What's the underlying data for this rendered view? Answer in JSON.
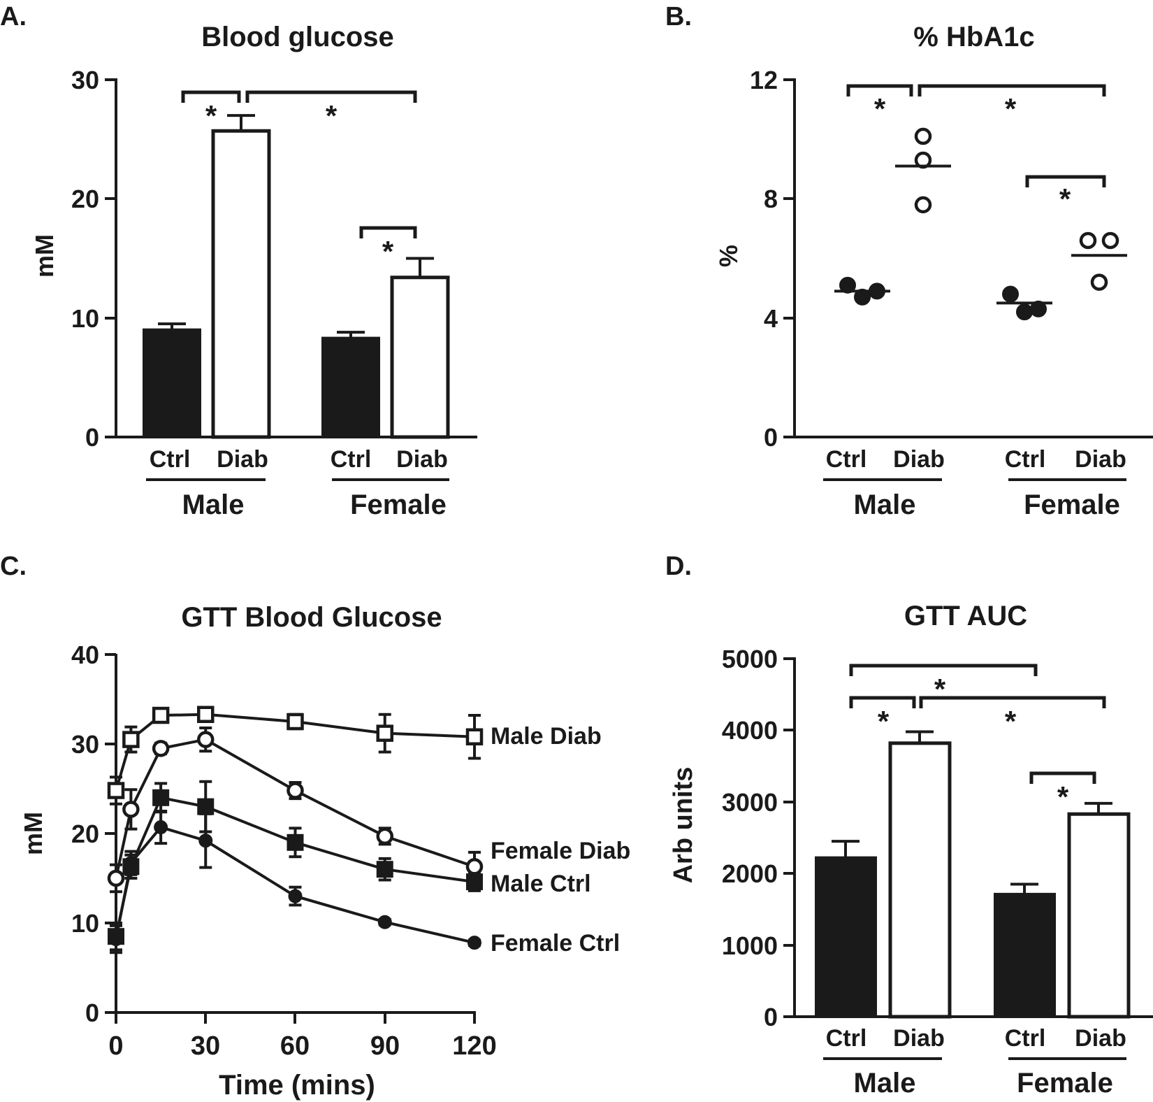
{
  "chart_data": [
    {
      "panel": "A.",
      "type": "bar",
      "title": "Blood glucose",
      "ylabel": "mM",
      "ylim": [
        0,
        30
      ],
      "yticks": [
        "0",
        "10",
        "20",
        "30"
      ],
      "categories": [
        "Ctrl",
        "Diab",
        "Ctrl",
        "Diab"
      ],
      "groups": [
        "Male",
        "Female"
      ],
      "values": [
        9.0,
        25.7,
        8.3,
        13.4
      ],
      "errors": [
        0.5,
        1.3,
        0.5,
        1.6
      ],
      "fills": [
        "filled",
        "open",
        "filled",
        "open"
      ],
      "significance": [
        "*",
        "*",
        "*"
      ]
    },
    {
      "panel": "B.",
      "type": "scatter",
      "title": "% HbA1c",
      "ylabel": "%",
      "ylim": [
        0,
        12
      ],
      "yticks": [
        "0",
        "4",
        "8",
        "12"
      ],
      "categories": [
        "Ctrl",
        "Diab",
        "Ctrl",
        "Diab"
      ],
      "groups": [
        "Male",
        "Female"
      ],
      "points": [
        [
          5.1,
          4.7,
          4.9
        ],
        [
          10.1,
          9.3,
          7.8
        ],
        [
          4.8,
          4.2,
          4.3
        ],
        [
          6.6,
          6.6,
          5.2
        ]
      ],
      "means": [
        4.9,
        9.1,
        4.5,
        6.1
      ],
      "fills": [
        "filled",
        "open",
        "filled",
        "open"
      ],
      "significance": [
        "*",
        "*",
        "*"
      ]
    },
    {
      "panel": "C.",
      "type": "line",
      "title": "GTT Blood Glucose",
      "xlabel": "Time (mins)",
      "ylabel": "mM",
      "xlim": [
        0,
        120
      ],
      "ylim": [
        0,
        40
      ],
      "xticks": [
        "0",
        "30",
        "60",
        "90",
        "120"
      ],
      "yticks": [
        "0",
        "10",
        "20",
        "30",
        "40"
      ],
      "x": [
        0,
        5,
        15,
        30,
        60,
        90,
        120
      ],
      "series": [
        {
          "name": "Male Diab",
          "marker": "open-square",
          "values": [
            24.8,
            30.5,
            33.2,
            33.3,
            32.5,
            31.2,
            30.8
          ],
          "errors": [
            1.5,
            1.4,
            0.6,
            0.6,
            0.8,
            2.1,
            2.4
          ]
        },
        {
          "name": "Female Diab",
          "marker": "open-circle",
          "values": [
            15.0,
            22.7,
            29.5,
            30.5,
            24.8,
            19.7,
            16.3
          ],
          "errors": [
            1.5,
            2.2,
            0.6,
            1.3,
            0.9,
            0.9,
            1.6
          ]
        },
        {
          "name": "Male Ctrl",
          "marker": "filled-square",
          "values": [
            8.5,
            16.3,
            24.0,
            23.0,
            19.0,
            16.0,
            14.6
          ],
          "errors": [
            1.5,
            1.3,
            1.6,
            2.8,
            1.6,
            1.2,
            1.0
          ]
        },
        {
          "name": "Female Ctrl",
          "marker": "filled-circle",
          "values": [
            8.2,
            16.7,
            20.7,
            19.2,
            13.0,
            10.1,
            7.8
          ],
          "errors": [
            1.5,
            1.3,
            1.8,
            3.0,
            1.0,
            0.3,
            0.3
          ]
        }
      ]
    },
    {
      "panel": "D.",
      "type": "bar",
      "title": "GTT AUC",
      "ylabel": "Arb units",
      "ylim": [
        0,
        5000
      ],
      "yticks": [
        "0",
        "1000",
        "2000",
        "3000",
        "4000",
        "5000"
      ],
      "categories": [
        "Ctrl",
        "Diab",
        "Ctrl",
        "Diab"
      ],
      "groups": [
        "Male",
        "Female"
      ],
      "values": [
        2220,
        3820,
        1710,
        2830
      ],
      "errors": [
        230,
        160,
        140,
        150
      ],
      "fills": [
        "filled",
        "open",
        "filled",
        "open"
      ],
      "significance": [
        "*",
        "*",
        "*",
        "*"
      ]
    }
  ]
}
